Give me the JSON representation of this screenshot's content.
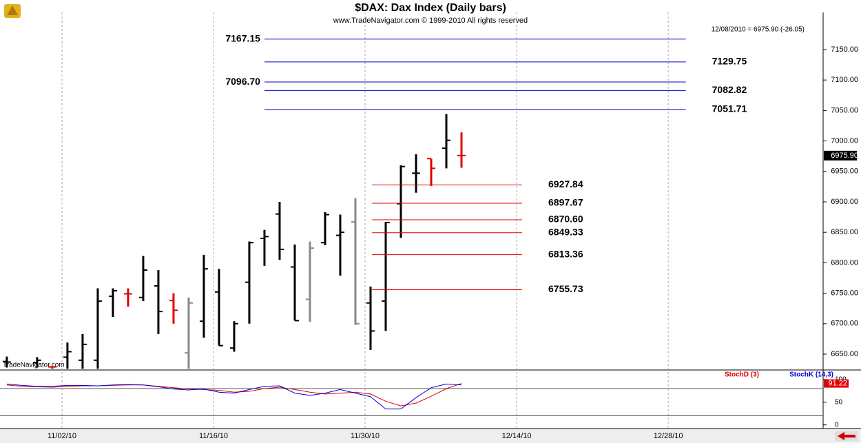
{
  "chart_data": [
    {
      "type": "ohlc",
      "title": "$DAX:  Dax Index  (Daily bars)",
      "subtitle": "www.TradeNavigator.com © 1999-2010 All rights reserved",
      "annotation": "12/08/2010 = 6975.90 (-26.05)",
      "watermark": "TradeNavigator.com",
      "last_price": {
        "value": 6975.9,
        "label": "6975.90"
      },
      "x": [
        0,
        2,
        3,
        4,
        5,
        6,
        7,
        8,
        9,
        10,
        11,
        12,
        13,
        14,
        15,
        16,
        17,
        18,
        19,
        20,
        21,
        22,
        23,
        24,
        25,
        26,
        27,
        28,
        29,
        30
      ],
      "open": [
        6638,
        6636,
        6629,
        6645,
        6640,
        6640,
        6745,
        6749,
        6743,
        6762,
        6738,
        6652,
        6704,
        6752,
        6660,
        6768,
        6840,
        6880,
        6793,
        6740,
        6833,
        6845,
        6867,
        6734,
        6737,
        6897,
        6947,
        6971,
        6988,
        6976
      ],
      "high": [
        6646,
        6645,
        6630,
        6669,
        6683,
        6758,
        6758,
        6758,
        6811,
        6788,
        6750,
        6743,
        6813,
        6790,
        6704,
        6835,
        6854,
        6900,
        6830,
        6835,
        6883,
        6879,
        6906,
        6761,
        6867,
        6960,
        6978,
        6971,
        7044,
        7014
      ],
      "low": [
        6628,
        6628,
        6626,
        6626,
        6626,
        6626,
        6711,
        6728,
        6737,
        6683,
        6700,
        6626,
        6677,
        6664,
        6654,
        6700,
        6795,
        6805,
        6705,
        6703,
        6829,
        6779,
        6698,
        6657,
        6688,
        6841,
        6915,
        6926,
        6955,
        6956
      ],
      "close": [
        6637,
        6640,
        6629,
        6654,
        6666,
        6737,
        6754,
        6749,
        6788,
        6720,
        6722,
        6734,
        6790,
        6664,
        6700,
        6833,
        6843,
        6822,
        6705,
        6824,
        6879,
        6850,
        6700,
        6688,
        6866,
        6958,
        6947,
        6955,
        7001,
        6976
      ],
      "colors": [
        "#000",
        "#000",
        "#e00000",
        "#000",
        "#000",
        "#000",
        "#000",
        "#e00000",
        "#000",
        "#000",
        "#e00000",
        "#888",
        "#000",
        "#000",
        "#000",
        "#000",
        "#000",
        "#000",
        "#000",
        "#888",
        "#000",
        "#000",
        "#888",
        "#000",
        "#000",
        "#000",
        "#000",
        "#e00000",
        "#000",
        "#e00000"
      ],
      "xlim": [
        -0.45,
        53.86
      ],
      "ylim": [
        6624,
        7211
      ],
      "yticks": [
        {
          "value": 6650,
          "label": "6650.00"
        },
        {
          "value": 6700,
          "label": "6700.00"
        },
        {
          "value": 6750,
          "label": "6750.00"
        },
        {
          "value": 6800,
          "label": "6800.00"
        },
        {
          "value": 6850,
          "label": "6850.00"
        },
        {
          "value": 6900,
          "label": "6900.00"
        },
        {
          "value": 6950,
          "label": "6950.00"
        },
        {
          "value": 7000,
          "label": "7000.00"
        },
        {
          "value": 7050,
          "label": "7050.00"
        },
        {
          "value": 7100,
          "label": "7100.00"
        },
        {
          "value": 7150,
          "label": "7150.00"
        }
      ],
      "xticks": [
        {
          "value": 3.64,
          "label": "11/02/10"
        },
        {
          "value": 13.64,
          "label": "11/16/10"
        },
        {
          "value": 23.64,
          "label": "11/30/10"
        },
        {
          "value": 33.64,
          "label": "12/14/10"
        },
        {
          "value": 43.64,
          "label": "12/28/10"
        }
      ],
      "levels": [
        {
          "value": 7167.15,
          "label": "7167.15",
          "side": "left",
          "color": "#0000cc",
          "from": 17,
          "to": 44.8
        },
        {
          "value": 7129.75,
          "label": "7129.75",
          "side": "right",
          "color": "#0000cc",
          "from": 17,
          "to": 44.8
        },
        {
          "value": 7096.7,
          "label": "7096.70",
          "side": "left",
          "color": "#0000cc",
          "from": 17,
          "to": 44.8
        },
        {
          "value": 7082.82,
          "label": "7082.82",
          "side": "right",
          "color": "#0000cc",
          "from": 17,
          "to": 44.8
        },
        {
          "value": 7051.71,
          "label": "7051.71",
          "side": "right",
          "color": "#0000cc",
          "from": 17,
          "to": 44.8
        },
        {
          "value": 6927.84,
          "label": "6927.84",
          "side": "right",
          "color": "#e00000",
          "from": 24.1,
          "to": 34
        },
        {
          "value": 6897.67,
          "label": "6897.67",
          "side": "right",
          "color": "#e00000",
          "from": 24.1,
          "to": 34
        },
        {
          "value": 6870.6,
          "label": "6870.60",
          "side": "right",
          "color": "#e00000",
          "from": 24.1,
          "to": 34
        },
        {
          "value": 6849.33,
          "label": "6849.33",
          "side": "right",
          "color": "#e00000",
          "from": 24.1,
          "to": 34
        },
        {
          "value": 6813.36,
          "label": "6813.36",
          "side": "right",
          "color": "#e00000",
          "from": 24.1,
          "to": 34
        },
        {
          "value": 6755.73,
          "label": "6755.73",
          "side": "right",
          "color": "#e00000",
          "from": 24.1,
          "to": 34
        }
      ]
    },
    {
      "type": "line",
      "x": [
        0,
        1,
        2,
        3,
        4,
        5,
        6,
        7,
        8,
        9,
        10,
        11,
        12,
        13,
        14,
        15,
        16,
        17,
        18,
        19,
        20,
        21,
        22,
        23,
        24,
        25,
        26,
        27,
        28,
        29,
        30
      ],
      "series": [
        {
          "name": "StochD (3)",
          "color": "#e00000",
          "values": [
            88,
            85,
            84,
            83,
            85,
            86,
            86,
            87,
            88,
            88,
            85,
            82,
            79,
            78,
            76,
            72,
            74,
            80,
            83,
            78,
            72,
            68,
            70,
            72,
            68,
            52,
            42,
            48,
            63,
            80,
            91.22
          ]
        },
        {
          "name": "StochK (14,3)",
          "color": "#0000dd",
          "values": [
            90,
            87,
            85,
            85,
            87,
            87,
            86,
            88,
            89,
            88,
            84,
            79,
            77,
            79,
            72,
            70,
            78,
            85,
            86,
            70,
            65,
            70,
            78,
            70,
            62,
            35,
            35,
            60,
            82,
            90,
            88
          ]
        }
      ],
      "last_label": {
        "value": 91.22,
        "label": "91.22"
      },
      "ref_lines": [
        20,
        80
      ],
      "xlim": [
        -0.45,
        53.86
      ],
      "ylim": [
        -8,
        121
      ],
      "yticks": [
        0,
        50,
        100
      ]
    }
  ]
}
